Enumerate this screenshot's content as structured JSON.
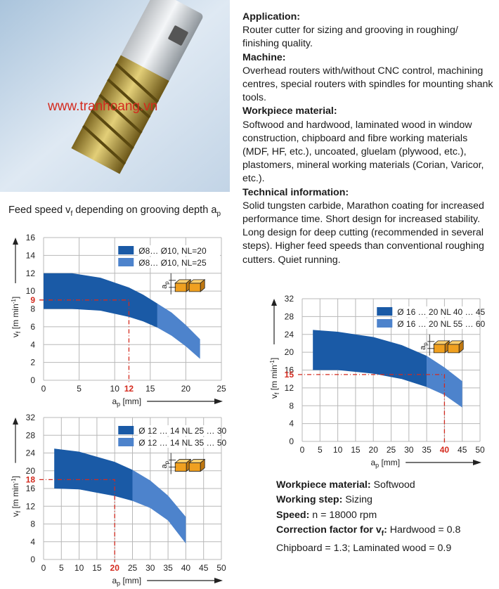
{
  "watermark": "www.tranhoang.vn",
  "sections": [
    {
      "heading": "Application:",
      "body": "Router cutter for sizing and grooving in roughing/ finishing quality."
    },
    {
      "heading": "Machine:",
      "body": "Overhead routers with/without CNC control, machining centres, special routers with spindles for mounting shank tools."
    },
    {
      "heading": "Workpiece material:",
      "body": "Softwood and hardwood, laminated wood in window construction, chipboard and fibre working materials (MDF, HF, etc.), uncoated, gluelam (plywood, etc.), plastomers, mineral working materials (Corian, Varicor, etc.)."
    },
    {
      "heading": "Technical information:",
      "body": "Solid tungsten carbide, Marathon coating for increased performance time. Short design for increased stability. Long design for deep cutting (recommended in several steps). Higher feed speeds than conventional roughing cutters. Quiet running."
    }
  ],
  "feed_title": {
    "part1": "Feed speed v",
    "sub1": "f",
    "part2": " depending on grooving depth a",
    "sub2": "p"
  },
  "footer": {
    "wm_label": "Workpiece material:",
    "wm_value": " Softwood",
    "ws_label": "Working step:",
    "ws_value": " Sizing",
    "sp_label": "Speed:",
    "sp_value": " n = 18000 rpm",
    "cf_label_a": "Correction factor for v",
    "cf_label_sub": "f",
    "cf_label_b": ":",
    "cf_value": " Hardwood = 0.8",
    "cf_line2": "Chipboard = 1.3; Laminated wood = 0.9"
  },
  "colors": {
    "dark": "#1a5aa6",
    "light": "#4d83cc",
    "marker": "#d42a1e",
    "grid": "#b8b8b8",
    "orange": "#f0a020"
  },
  "chart_data": [
    {
      "type": "area",
      "ylabel": "v",
      "ylabel_sub": "f",
      "ylabel_unit": " [m min",
      "ylabel_unit_sup": "-1",
      "ylabel_end": "]",
      "xlabel": "a",
      "xlabel_sub": "p",
      "xlabel_unit": " [mm]",
      "xlim": [
        0,
        25
      ],
      "ylim": [
        0,
        16
      ],
      "xticks": [
        "0",
        "5",
        "10",
        "15",
        "20",
        "25"
      ],
      "yticks": [
        "0",
        "2",
        "4",
        "6",
        "8",
        "10",
        "12",
        "14",
        "16"
      ],
      "legend": [
        {
          "name": "Ø8… Ø10, NL=20",
          "color": "dark"
        },
        {
          "name": "Ø8… Ø10, NL=25",
          "color": "light"
        }
      ],
      "series": [
        {
          "name": "Ø8… Ø10, NL=20",
          "color": "dark",
          "x": [
            0,
            4,
            8,
            12,
            14,
            16
          ],
          "upper": [
            12,
            12,
            11.5,
            10.4,
            9.6,
            8.6
          ],
          "lower": [
            8,
            8,
            7.8,
            7.1,
            6.6,
            5.9
          ]
        },
        {
          "name": "Ø8… Ø10, NL=25",
          "color": "light",
          "x": [
            16,
            18,
            20,
            22
          ],
          "upper": [
            8.6,
            7.6,
            6.2,
            4.6
          ],
          "lower": [
            5.9,
            5.0,
            3.8,
            2.4
          ]
        }
      ],
      "marker": {
        "x": 12,
        "y": 9,
        "xlabel": "12",
        "ylabel": "9"
      },
      "ap_label": "a",
      "ap_sub": "p"
    },
    {
      "type": "area",
      "ylabel": "v",
      "ylabel_sub": "f",
      "ylabel_unit": " [m min",
      "ylabel_unit_sup": "-1",
      "ylabel_end": "]",
      "xlabel": "a",
      "xlabel_sub": "p",
      "xlabel_unit": " [mm]",
      "xlim": [
        0,
        50
      ],
      "ylim": [
        0,
        32
      ],
      "xticks": [
        "0",
        "5",
        "10",
        "15",
        "20",
        "25",
        "30",
        "35",
        "40",
        "45",
        "50"
      ],
      "yticks": [
        "0",
        "4",
        "8",
        "12",
        "16",
        "20",
        "24",
        "28",
        "32"
      ],
      "legend": [
        {
          "name": "Ø 16 … 20 NL 40 … 45",
          "color": "dark"
        },
        {
          "name": "Ø 16 … 20 NL 55 … 60",
          "color": "light"
        }
      ],
      "series": [
        {
          "name": "Ø 16 … 20 NL 40 … 45",
          "color": "dark",
          "x": [
            3,
            10,
            20,
            28,
            35
          ],
          "upper": [
            25,
            24.6,
            23.4,
            21.6,
            19.2
          ],
          "lower": [
            16,
            16,
            15.2,
            14,
            12.2
          ]
        },
        {
          "name": "Ø 16 … 20 NL 55 … 60",
          "color": "light",
          "x": [
            35,
            40,
            45
          ],
          "upper": [
            19.2,
            16.6,
            13.5
          ],
          "lower": [
            12.2,
            10.4,
            7.6
          ]
        }
      ],
      "marker": {
        "x": 40,
        "y": 15,
        "xlabel": "40",
        "ylabel": "15"
      },
      "ap_label": "a",
      "ap_sub": "p"
    },
    {
      "type": "area",
      "ylabel": "v",
      "ylabel_sub": "f",
      "ylabel_unit": " [m min",
      "ylabel_unit_sup": "-1",
      "ylabel_end": "]",
      "xlabel": "a",
      "xlabel_sub": "p",
      "xlabel_unit": " [mm]",
      "xlim": [
        0,
        50
      ],
      "ylim": [
        0,
        32
      ],
      "xticks": [
        "0",
        "5",
        "10",
        "15",
        "20",
        "25",
        "30",
        "35",
        "40",
        "45",
        "50"
      ],
      "yticks": [
        "0",
        "4",
        "8",
        "12",
        "16",
        "20",
        "24",
        "28",
        "32"
      ],
      "legend": [
        {
          "name": "Ø 12 … 14 NL 25 … 30",
          "color": "dark"
        },
        {
          "name": "Ø 12 … 14 NL 35 … 50",
          "color": "light"
        }
      ],
      "series": [
        {
          "name": "Ø 12 … 14 NL 25 … 30",
          "color": "dark",
          "x": [
            3,
            10,
            20,
            25
          ],
          "upper": [
            25,
            24.3,
            22,
            20.2
          ],
          "lower": [
            16,
            15.8,
            14.3,
            13.2
          ]
        },
        {
          "name": "Ø 12 … 14 NL 35 … 50",
          "color": "light",
          "x": [
            25,
            30,
            35,
            40
          ],
          "upper": [
            20.2,
            17.8,
            14.4,
            9.6
          ],
          "lower": [
            13.2,
            11.6,
            8.8,
            3.6
          ]
        }
      ],
      "marker": {
        "x": 20,
        "y": 18,
        "xlabel": "20",
        "ylabel": "18"
      },
      "ap_label": "a",
      "ap_sub": "p"
    }
  ]
}
